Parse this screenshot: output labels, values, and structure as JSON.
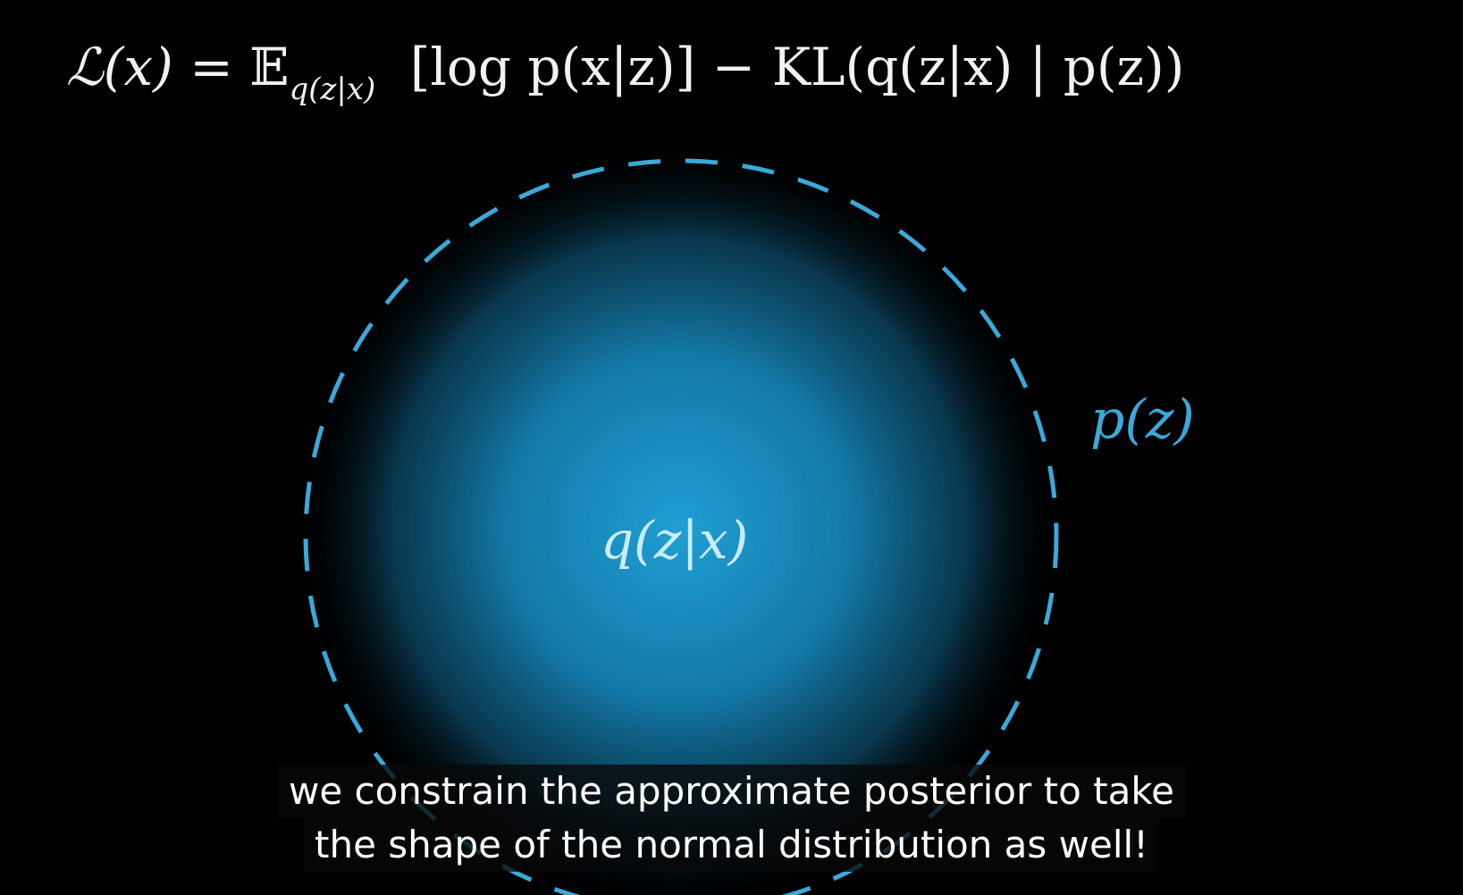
{
  "formula": {
    "lhs": "ℒ(x)",
    "equals": "=",
    "expectation": "𝔼",
    "expectation_subscript": "q(z|x)",
    "reconstruction_term": "[log p(x|z)]",
    "minus": "−",
    "kl_term": "KL(q(z|x) | p(z))"
  },
  "labels": {
    "prior": "p(z)",
    "posterior": "q(z|x)"
  },
  "subtitles": [
    "we constrain the approximate posterior to take",
    "the shape of the normal distribution as well!"
  ],
  "colors": {
    "background": "#000000",
    "prior_dashed_circle": "#3aa9d9",
    "posterior_fill_center": "#1f9fd4",
    "formula_text": "#f2f2f2",
    "subtitle_text": "#ffffff"
  }
}
